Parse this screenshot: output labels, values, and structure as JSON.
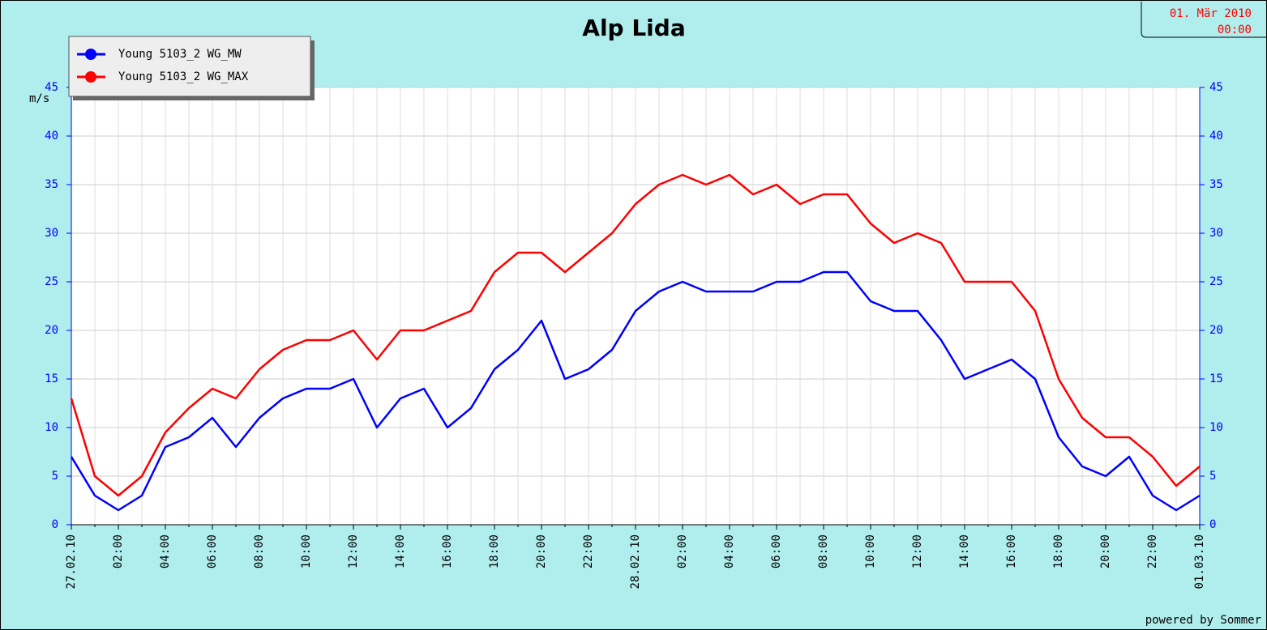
{
  "chart_data": {
    "type": "line",
    "title": "Alp Lida",
    "date_box": [
      "01. Mär 2010",
      "00:00"
    ],
    "y_label": "m/s",
    "footer": "powered by Sommer",
    "categories": [
      "27.02.10",
      null,
      "02:00",
      null,
      "04:00",
      null,
      "06:00",
      null,
      "08:00",
      null,
      "10:00",
      null,
      "12:00",
      null,
      "14:00",
      null,
      "16:00",
      null,
      "18:00",
      null,
      "20:00",
      null,
      "22:00",
      null,
      "28.02.10",
      null,
      "02:00",
      null,
      "04:00",
      null,
      "06:00",
      null,
      "08:00",
      null,
      "10:00",
      null,
      "12:00",
      null,
      "14:00",
      null,
      "16:00",
      null,
      "18:00",
      null,
      "20:00",
      null,
      "22:00",
      null,
      "01.03.10"
    ],
    "series": [
      {
        "name": "Young 5103_2 WG_MW",
        "color": "#0000ff",
        "values": [
          7,
          3,
          1.5,
          3,
          8,
          9,
          11,
          8,
          11,
          13,
          14,
          14,
          15,
          10,
          13,
          14,
          10,
          12,
          16,
          18,
          21,
          15,
          16,
          18,
          22,
          24,
          25,
          24,
          24,
          24,
          25,
          25,
          26,
          26,
          23,
          22,
          22,
          19,
          15,
          16,
          17,
          15,
          9,
          6,
          5,
          7,
          3,
          1.5,
          3
        ]
      },
      {
        "name": "Young 5103_2 WG_MAX",
        "color": "#ff0000",
        "values": [
          13,
          5,
          3,
          5,
          9.5,
          12,
          14,
          13,
          16,
          18,
          19,
          19,
          20,
          17,
          20,
          20,
          21,
          22,
          26,
          28,
          28,
          26,
          28,
          30,
          33,
          35,
          36,
          35,
          36,
          34,
          35,
          33,
          34,
          34,
          31,
          29,
          30,
          29,
          25,
          25,
          25,
          22,
          15,
          11,
          9,
          9,
          7,
          4,
          6
        ]
      }
    ],
    "ylim": [
      0,
      45
    ],
    "yticks": [
      0,
      5,
      10,
      15,
      20,
      25,
      30,
      35,
      40,
      45
    ],
    "grid": true,
    "legend": "upper left"
  }
}
